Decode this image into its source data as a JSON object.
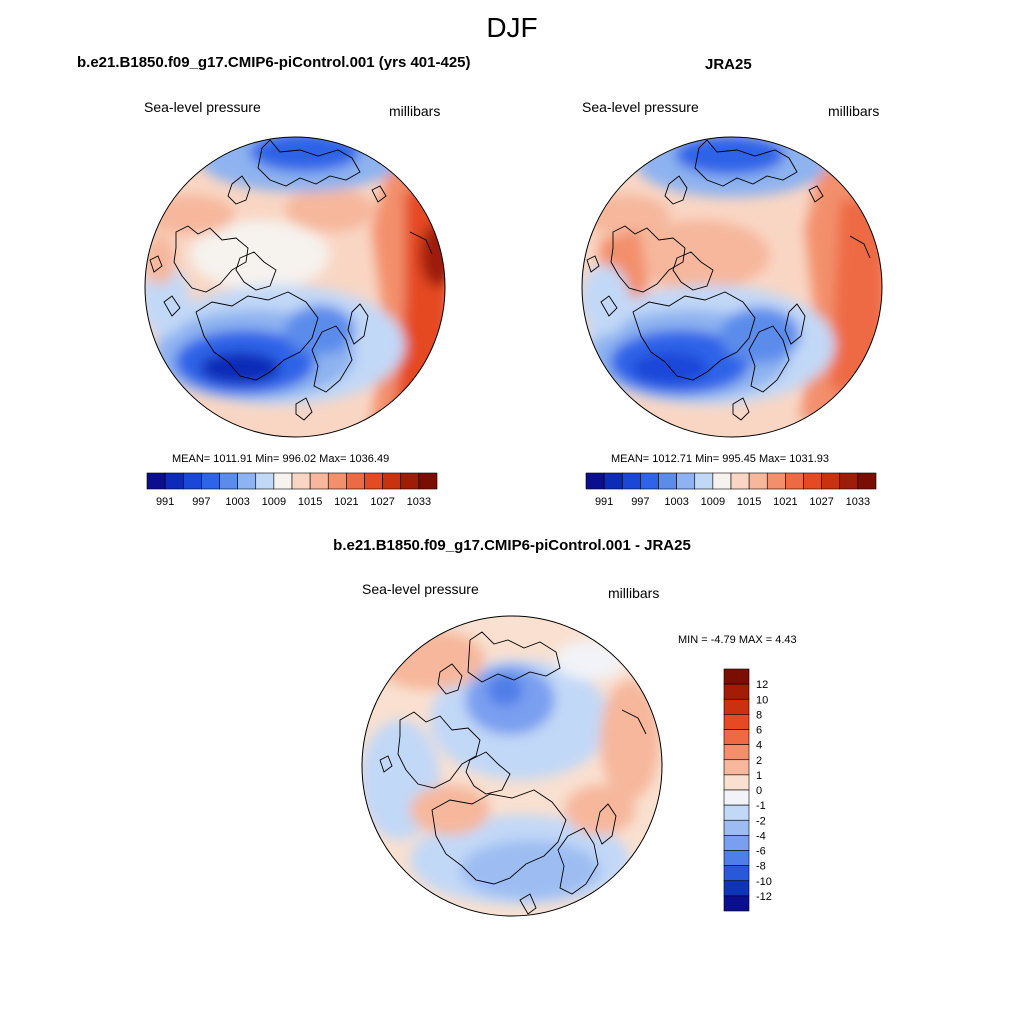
{
  "figure_title": "DJF",
  "panels": [
    {
      "title": "b.e21.B1850.f09_g17.CMIP6-piControl.001 (yrs 401-425)",
      "variable": "Sea-level pressure",
      "units": "millibars",
      "stats": "MEAN= 1011.91   Min= 996.02   Max= 1036.49"
    },
    {
      "title": "JRA25",
      "variable": "Sea-level pressure",
      "units": "millibars",
      "stats": "MEAN= 1012.71   Min= 995.45   Max= 1031.93"
    },
    {
      "title": "b.e21.B1850.f09_g17.CMIP6-piControl.001 - JRA25",
      "variable": "Sea-level pressure",
      "units": "millibars",
      "stats": "MIN =  -4.79 MAX =   4.43"
    }
  ],
  "abs_colorbar": {
    "labels": [
      "991",
      "997",
      "1003",
      "1009",
      "1015",
      "1021",
      "1027",
      "1033"
    ],
    "colors": [
      "#0b0f8f",
      "#0d2bb8",
      "#1b47d9",
      "#2f64e8",
      "#5b8ceb",
      "#8eb3f0",
      "#c2d8f7",
      "#f6f2ee",
      "#f9d6c4",
      "#f6b79c",
      "#f38f6c",
      "#ee6a45",
      "#e54a23",
      "#c9310f",
      "#9e1d08",
      "#7a0e02"
    ]
  },
  "diff_colorbar": {
    "labels": [
      "12",
      "10",
      "8",
      "6",
      "4",
      "2",
      "1",
      "0",
      "-1",
      "-2",
      "-4",
      "-6",
      "-8",
      "-10",
      "-12"
    ],
    "colors": [
      "#7a0e02",
      "#a31c06",
      "#c9310f",
      "#e54a23",
      "#ee6a45",
      "#f38f6c",
      "#f6b79c",
      "#f9e0d0",
      "#f2f3f8",
      "#c2d8f7",
      "#9dbdf2",
      "#7a9ff0",
      "#4f7ee8",
      "#2759d9",
      "#1034b8",
      "#0b0f8f"
    ]
  }
}
